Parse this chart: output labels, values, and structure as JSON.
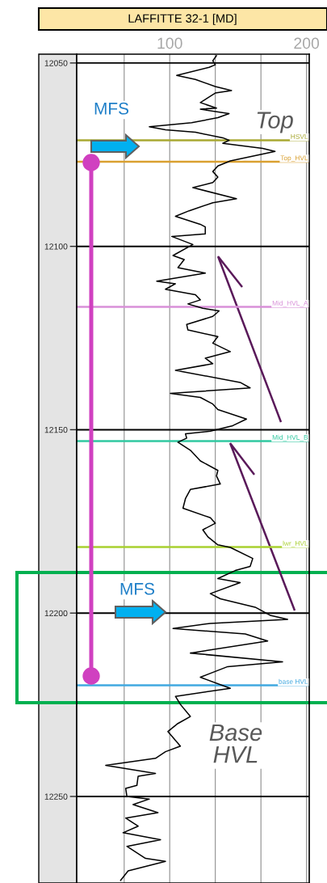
{
  "chart_data": {
    "type": "line",
    "title": "LAFFITTE 32-1 [MD]",
    "series": [
      {
        "color": "#000000",
        "x": [
          134.2,
          131.5,
          133.3,
          128.8,
          105.1,
          118.8,
          133.3,
          145.2,
          133.3,
          122.4,
          134.2,
          122.4,
          143.4,
          135.2,
          116.0,
          85.1,
          96.9,
          118.8,
          138.8,
          143.4,
          138.8,
          167.9,
          177.0,
          144.3,
          135.2,
          131.5,
          135.2,
          131.5,
          116.9,
          148.8,
          131.5,
          114.2,
          104.2,
          122.4,
          126.0,
          126.0,
          101.5,
          116.9,
          102.4,
          110.6,
          106.0,
          126.0,
          90.5,
          104.2,
          96.9,
          118.8,
          122.4,
          113.3,
          124.2,
          136.1,
          131.5,
          112.4,
          113.3,
          135.2,
          131.5,
          144.3,
          126.0,
          131.5,
          104.2,
          151.5,
          158.8,
          100.5,
          122.4,
          131.5,
          135.2,
          156.1,
          146.1,
          129.7,
          111.5,
          112.4,
          106.0,
          115.1,
          122.4,
          135.2,
          134.2,
          137.0,
          115.1,
          111.5,
          109.7,
          129.7,
          133.3,
          124.2,
          127.9,
          135.2,
          144.3,
          160.7,
          158.8,
          147.9,
          135.2,
          151.5,
          129.7,
          137.0,
          162.5,
          173.4,
          186.2,
          129.7,
          102.4,
          155.2,
          171.6,
          115.1,
          182.5,
          142.4,
          122.4,
          144.3,
          104.2,
          107.8,
          115.1,
          106.0,
          98.7,
          107.8,
          96.9,
          89.6,
          53.2,
          89.6,
          76.9,
          76.0,
          67.8,
          68.7,
          85.1,
          73.2,
          91.4,
          67.8,
          76.9,
          65.9,
          93.3,
          68.7,
          82.3,
          96.9,
          69.6,
          64.1
        ],
        "values": [
          12048,
          12049.4,
          12050.5,
          12051.2,
          12053.4,
          12054.5,
          12056.4,
          12057.5,
          12058.2,
          12060.8,
          12062.3,
          12062.6,
          12063.8,
          12064.9,
          12066.3,
          12067.4,
          12068.2,
          12068.9,
          12070.4,
          12071.1,
          12071.9,
          12073.3,
          12074.1,
          12076.7,
          12078.1,
          12079.6,
          12081.1,
          12082.6,
          12084.0,
          12087.0,
          12088.1,
          12090.3,
          12091.8,
          12094.0,
          12094.7,
          12096.6,
          12097.3,
          12099.5,
          12102.5,
          12103.6,
          12105.8,
          12107.3,
          12109.5,
          12110.2,
          12111.7,
          12113.2,
          12114.6,
          12115.7,
          12116.9,
          12117.6,
          12119.1,
          12121.3,
          12122.8,
          12124.6,
          12126.4,
          12128.7,
          12130.5,
          12132.0,
          12133.8,
          12137.1,
          12138.6,
          12140.1,
          12141.2,
          12143.0,
          12144.5,
          12147.1,
          12148.9,
          12150.4,
          12151.1,
          12152.3,
          12153.4,
          12155.6,
          12158.5,
          12161.1,
          12162.6,
          12164.8,
          12166.3,
          12168.8,
          12171.4,
          12174.0,
          12175.5,
          12177.3,
          12179.2,
          12181.4,
          12182.1,
          12185.1,
          12187.3,
          12188.4,
          12190.6,
          12191.7,
          12194.7,
          12196.1,
          12198.4,
          12200.6,
          12201.7,
          12202.8,
          12204.2,
          12205.7,
          12207.6,
          12210.9,
          12213.3,
          12214.6,
          12217.5,
          12220.5,
          12222.7,
          12224.9,
          12228.2,
          12230.1,
          12232.3,
          12236.3,
          12237.8,
          12239.6,
          12241.5,
          12243.7,
          12244.5,
          12247.0,
          12247.8,
          12250.0,
          12250.7,
          12252.2,
          12254.4,
          12255.9,
          12258.1,
          12259.9,
          12261.8,
          12263.6,
          12266.9,
          12267.7,
          12270.3,
          12272.9
        ]
      }
    ],
    "xlim": [
      32,
      202
    ],
    "xticks": [
      {
        "value": 66.7,
        "label": null
      },
      100,
      {
        "value": 133.3,
        "label": null
      },
      {
        "value": 166.7,
        "label": null
      },
      200
    ],
    "ylim": [
      12273.6,
      12047.6
    ],
    "yticks": [
      12050,
      12100,
      12150,
      12200,
      12250
    ],
    "grid": true,
    "line_style": "solid",
    "ref_lines": [
      {
        "axis": "y",
        "value": 12071.1,
        "label": "HSVL",
        "color": "#a8a832"
      },
      {
        "axis": "y",
        "value": 12076.9,
        "label": "Top_HVL",
        "color": "#d9a030"
      },
      {
        "axis": "y",
        "value": 12116.5,
        "label": "Mid_HVL_A",
        "color": "#d890d8"
      },
      {
        "axis": "y",
        "value": 12153.1,
        "label": "Mid_HVL_B",
        "color": "#30c8a0"
      },
      {
        "axis": "y",
        "value": 12182.0,
        "label": "lwr_HVL",
        "color": "#a8d030"
      },
      {
        "axis": "y",
        "value": 12219.7,
        "label": "base HVL",
        "color": "#40a8e0"
      }
    ],
    "annotations": [
      "MFS",
      "MFS",
      "Top",
      "Base HVL"
    ]
  }
}
